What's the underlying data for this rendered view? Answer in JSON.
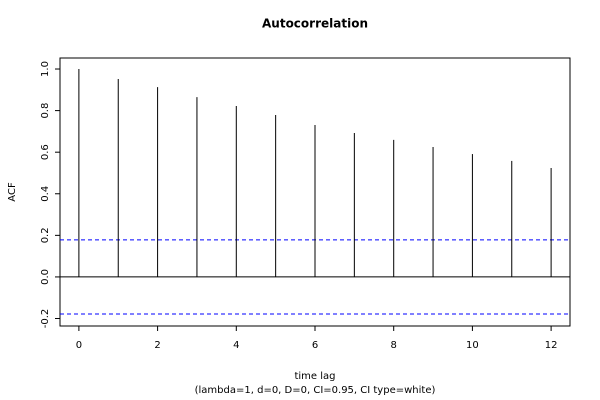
{
  "chart_data": {
    "type": "stem",
    "title": "Autocorrelation",
    "x_label": "time lag",
    "subtitle": "(lambda=1, d=0, D=0, CI=0.95, CI type=white)",
    "y_label": "ACF",
    "x": [
      0,
      1,
      2,
      3,
      4,
      5,
      6,
      7,
      8,
      9,
      10,
      11,
      12
    ],
    "values": [
      1.0,
      0.952,
      0.913,
      0.865,
      0.822,
      0.779,
      0.731,
      0.692,
      0.659,
      0.625,
      0.591,
      0.558,
      0.524
    ],
    "color": "#000000",
    "ci_lines": [
      0.178,
      -0.178
    ],
    "ci_color": "#0000ff",
    "xlim": [
      -0.48,
      12.48
    ],
    "xticks": [
      0,
      2,
      4,
      6,
      8,
      10,
      12
    ],
    "ylim": [
      -0.236,
      1.053
    ],
    "yticks": [
      -0.2,
      {
        "value": 0,
        "label": "0.0"
      },
      0.2,
      0.4,
      0.6,
      0.8,
      {
        "value": 1,
        "label": "1.0"
      }
    ]
  }
}
